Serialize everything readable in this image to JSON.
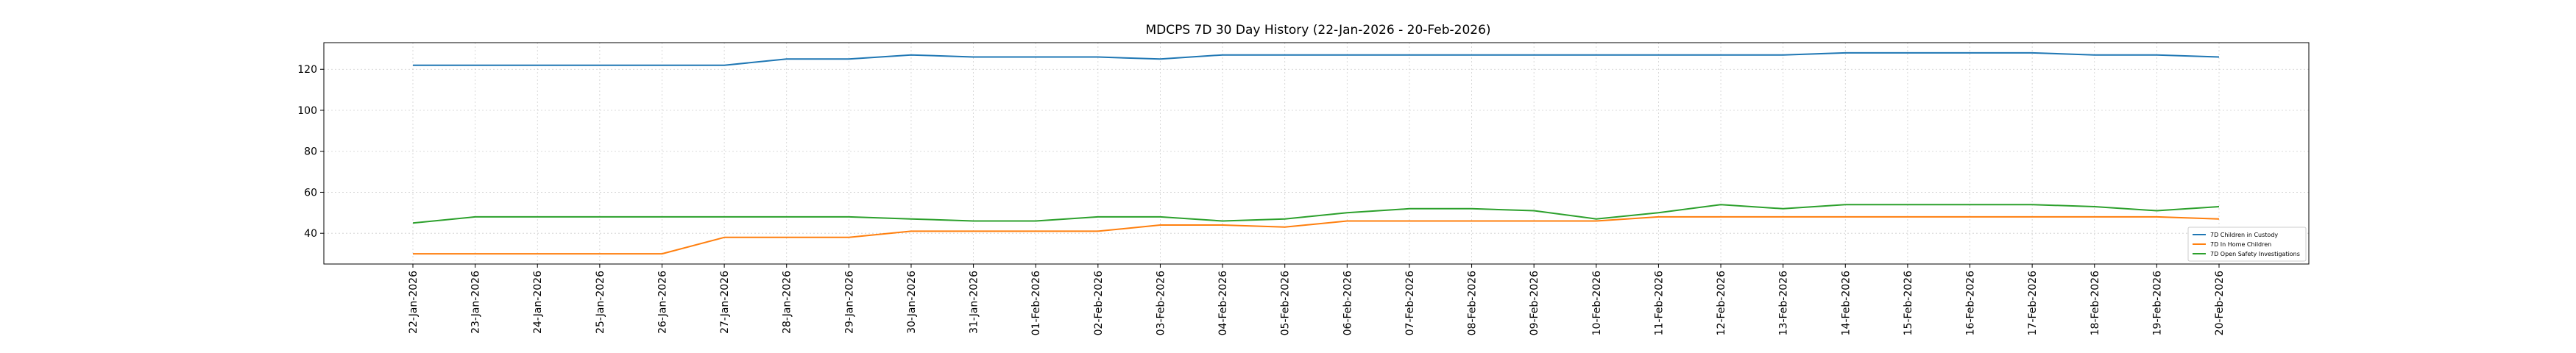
{
  "chart_data": {
    "type": "line",
    "title": "MDCPS 7D 30 Day History (22-Jan-2026 - 20-Feb-2026)",
    "xlabel": "",
    "ylabel": "",
    "ylim": [
      25,
      133
    ],
    "yticks": [
      40,
      60,
      80,
      100,
      120
    ],
    "grid": true,
    "legend_position": "lower-right",
    "categories": [
      "22-Jan-2026",
      "23-Jan-2026",
      "24-Jan-2026",
      "25-Jan-2026",
      "26-Jan-2026",
      "27-Jan-2026",
      "28-Jan-2026",
      "29-Jan-2026",
      "30-Jan-2026",
      "31-Jan-2026",
      "01-Feb-2026",
      "02-Feb-2026",
      "03-Feb-2026",
      "04-Feb-2026",
      "05-Feb-2026",
      "06-Feb-2026",
      "07-Feb-2026",
      "08-Feb-2026",
      "09-Feb-2026",
      "10-Feb-2026",
      "11-Feb-2026",
      "12-Feb-2026",
      "13-Feb-2026",
      "14-Feb-2026",
      "15-Feb-2026",
      "16-Feb-2026",
      "17-Feb-2026",
      "18-Feb-2026",
      "19-Feb-2026",
      "20-Feb-2026"
    ],
    "series": [
      {
        "name": "7D Children in Custody",
        "color": "#1f77b4",
        "values": [
          122,
          122,
          122,
          122,
          122,
          122,
          125,
          125,
          127,
          126,
          126,
          126,
          125,
          127,
          127,
          127,
          127,
          127,
          127,
          127,
          127,
          127,
          127,
          128,
          128,
          128,
          128,
          127,
          127,
          126
        ]
      },
      {
        "name": "7D In Home Children",
        "color": "#ff7f0e",
        "values": [
          30,
          30,
          30,
          30,
          30,
          38,
          38,
          38,
          41,
          41,
          41,
          41,
          44,
          44,
          43,
          46,
          46,
          46,
          46,
          46,
          48,
          48,
          48,
          48,
          48,
          48,
          48,
          48,
          48,
          47
        ]
      },
      {
        "name": "7D Open Safety Investigations",
        "color": "#2ca02c",
        "values": [
          45,
          48,
          48,
          48,
          48,
          48,
          48,
          48,
          47,
          46,
          46,
          48,
          48,
          46,
          47,
          50,
          52,
          52,
          51,
          47,
          50,
          54,
          52,
          54,
          54,
          54,
          54,
          53,
          51,
          53
        ]
      }
    ]
  }
}
